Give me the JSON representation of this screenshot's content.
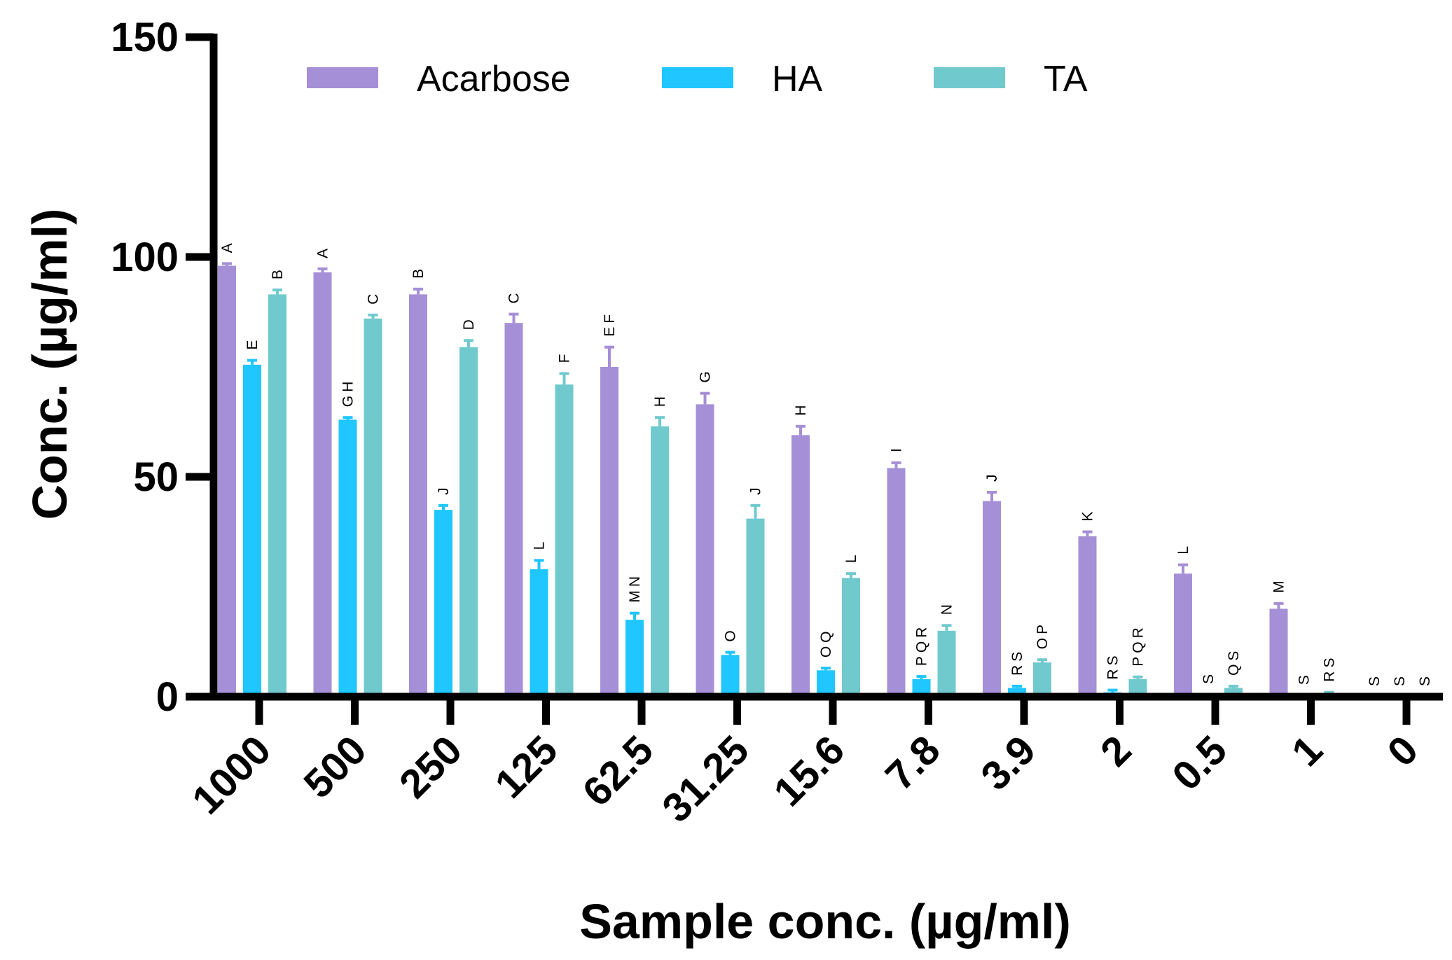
{
  "chart_data": {
    "type": "bar",
    "title": "",
    "xlabel": "Sample conc. (µg/ml)",
    "ylabel": "Conc. (µg/ml)",
    "ylim": [
      0,
      150
    ],
    "yticks": [
      0,
      50,
      100,
      150
    ],
    "legend_position": "top",
    "categories": [
      "1000",
      "500",
      "250",
      "125",
      "62.5",
      "31.25",
      "15.6",
      "7.8",
      "3.9",
      "2",
      "0.5",
      "1",
      "0"
    ],
    "series": [
      {
        "name": "Acarbose",
        "color": "#a58fd6",
        "values": [
          98,
          96.5,
          91.5,
          85,
          75,
          66.5,
          59.5,
          52,
          44.5,
          36.5,
          28,
          20,
          0
        ],
        "errors": [
          0.5,
          0.8,
          1.2,
          2,
          4.5,
          2.5,
          2,
          1.2,
          2,
          1,
          2,
          1.2,
          0
        ],
        "labels": [
          "A",
          "A",
          "B",
          "C",
          "EF",
          "G",
          "H",
          "I",
          "J",
          "K",
          "L",
          "M",
          "S"
        ]
      },
      {
        "name": "HA",
        "color": "#1fc6ff",
        "values": [
          75.5,
          63,
          42.5,
          29,
          17.5,
          9.5,
          6,
          4,
          2,
          1,
          0.3,
          0.2,
          0
        ],
        "errors": [
          1,
          0.5,
          1,
          2,
          1.5,
          0.6,
          0.5,
          0.6,
          0.4,
          0.5,
          0.2,
          0.1,
          0
        ],
        "labels": [
          "E",
          "GH",
          "J",
          "L",
          "MN",
          "O",
          "OQ",
          "PQR",
          "RS",
          "RS",
          "S",
          "S",
          "S"
        ]
      },
      {
        "name": "TA",
        "color": "#70c9cd",
        "values": [
          91.5,
          86,
          79.5,
          71,
          61.5,
          40.5,
          27,
          15,
          7.8,
          4,
          2,
          0.7,
          0
        ],
        "errors": [
          1,
          0.8,
          1.5,
          2.5,
          2,
          3,
          1,
          1.2,
          0.6,
          0.5,
          0.4,
          0.3,
          0
        ],
        "labels": [
          "B",
          "C",
          "D",
          "F",
          "H",
          "J",
          "L",
          "N",
          "OP",
          "PQR",
          "QS",
          "RS",
          "S"
        ]
      }
    ]
  }
}
